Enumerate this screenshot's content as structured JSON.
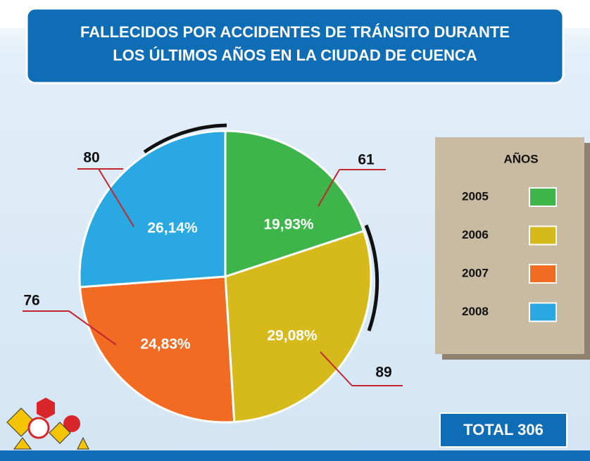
{
  "chart_data": {
    "type": "pie",
    "title": [
      "FALLECIDOS POR ACCIDENTES DE TRÁNSITO DURANTE",
      "LOS ÚLTIMOS AÑOS EN LA CIUDAD DE CUENCA"
    ],
    "categories": [
      "2005",
      "2006",
      "2007",
      "2008"
    ],
    "values": [
      61,
      89,
      76,
      80
    ],
    "colors": [
      "#3db54a",
      "#d6ba1c",
      "#f26b23",
      "#2aa8e1"
    ],
    "percentages": [
      19.93,
      29.08,
      24.83,
      26.14
    ],
    "percentage_labels": [
      "19,93%",
      "29,08%",
      "24,83%",
      "26,14%"
    ],
    "legend_title": "AÑOS",
    "total_label": "TOTAL",
    "total": 306
  }
}
